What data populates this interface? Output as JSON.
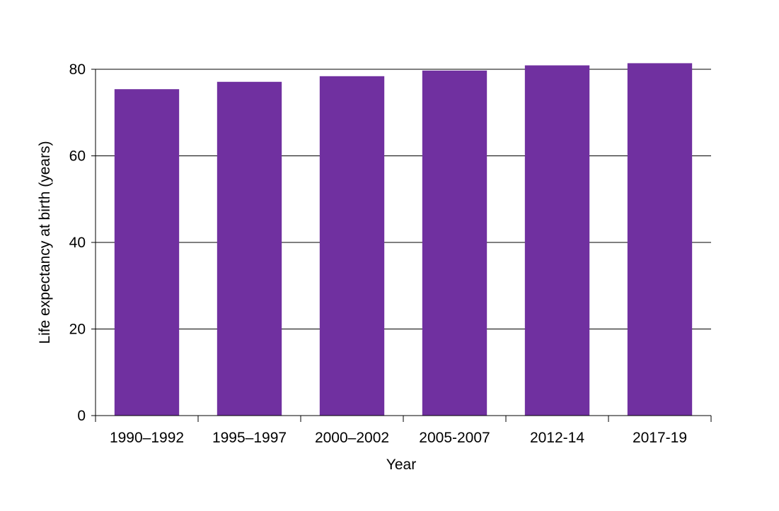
{
  "chart_data": {
    "type": "bar",
    "title": "",
    "xlabel": "Year",
    "ylabel": "Life expectancy at birth (years)",
    "categories": [
      "1990–1992",
      "1995–1997",
      "2000–2002",
      "2005-2007",
      "2012-14",
      "2017-19"
    ],
    "values": [
      75.4,
      77.1,
      78.4,
      79.7,
      80.9,
      81.4
    ],
    "ylim": [
      0,
      80
    ],
    "yticks": [
      0,
      20,
      40,
      60,
      80
    ],
    "grid": true,
    "legend": "none",
    "bar_color": "#7030A0"
  }
}
